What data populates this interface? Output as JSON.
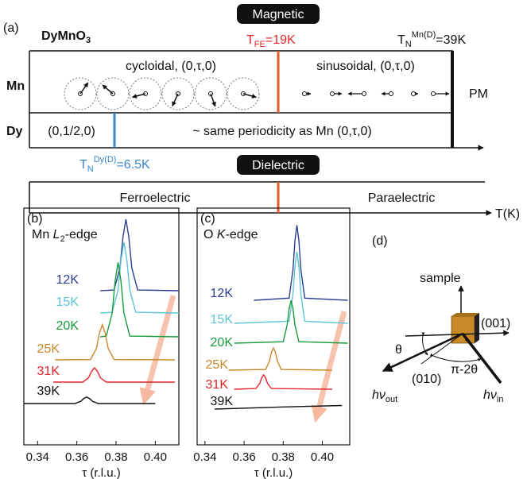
{
  "panel_a": {
    "label": "(a)",
    "compound": {
      "base": "DyMnO",
      "sub": "3"
    },
    "magnetic_header": "Magnetic",
    "t_fe": {
      "symbol": "T",
      "sub": "FE",
      "rest": "=19K"
    },
    "tn_mn": {
      "symbol": "T",
      "sub": "N",
      "sup": "Mn(D)",
      "rest": "=39K"
    },
    "rows": {
      "mn": "Mn",
      "dy": "Dy"
    },
    "cycloidal": "cycloidal, (0,τ,0)",
    "sinusoidal": "sinusoidal, (0,τ,0)",
    "pm": "PM",
    "dy_low": "(0,1/2,0)",
    "dy_high": "~ same periodicity as Mn (0,τ,0)",
    "tn_dy": {
      "symbol": "T",
      "sub": "N",
      "sup": "Dy(D)",
      "rest": "=6.5K"
    },
    "dielectric_header": "Dielectric",
    "ferro": "Ferroelectric",
    "para": "Paraelectric",
    "axis_label": "T(K)"
  },
  "chart_data": [
    {
      "type": "line",
      "panel_label": "(b)",
      "edge_label": [
        "Mn ",
        "L",
        "2",
        "-edge"
      ],
      "xlabel": "τ (r.l.u.)",
      "xlim": [
        0.333,
        0.412
      ],
      "xticks": [
        0.34,
        0.36,
        0.38,
        {
          "value": 0.4,
          "label": "0.40"
        }
      ],
      "series": [
        {
          "name": "12K",
          "color": "#2b3f8f",
          "x": [
            0.372,
            0.379,
            0.382,
            0.3835,
            0.385,
            0.3865,
            0.388,
            0.391,
            0.412
          ],
          "values": [
            0,
            0.01,
            0.32,
            0.75,
            1.0,
            0.75,
            0.32,
            0.01,
            0
          ]
        },
        {
          "name": "15K",
          "color": "#5fc4d4",
          "x": [
            0.372,
            0.378,
            0.381,
            0.3825,
            0.384,
            0.3855,
            0.387,
            0.39,
            0.412
          ],
          "values": [
            0,
            0.01,
            0.32,
            0.74,
            0.99,
            0.74,
            0.32,
            0.01,
            0
          ]
        },
        {
          "name": "20K",
          "color": "#1a9a3c",
          "x": [
            0.372,
            0.375,
            0.378,
            0.3795,
            0.381,
            0.3825,
            0.384,
            0.387,
            0.412
          ],
          "values": [
            0,
            0.01,
            0.33,
            0.78,
            1.04,
            0.78,
            0.33,
            0.01,
            0
          ]
        },
        {
          "name": "25K",
          "color": "#c8872a",
          "x": [
            0.349,
            0.367,
            0.37,
            0.3715,
            0.373,
            0.3745,
            0.376,
            0.379,
            0.41
          ],
          "values": [
            0,
            0.005,
            0.16,
            0.37,
            0.49,
            0.37,
            0.16,
            0.005,
            0
          ]
        },
        {
          "name": "31K",
          "color": "#e0242a",
          "x": [
            0.348,
            0.363,
            0.366,
            0.3675,
            0.369,
            0.3705,
            0.372,
            0.375,
            0.41
          ],
          "values": [
            0,
            0,
            0.06,
            0.15,
            0.2,
            0.15,
            0.06,
            0,
            0
          ]
        },
        {
          "name": "39K",
          "color": "#111111",
          "x": [
            0.333,
            0.359,
            0.362,
            0.3635,
            0.365,
            0.3665,
            0.368,
            0.371,
            0.4
          ],
          "values": [
            0,
            0,
            0.03,
            0.07,
            0.09,
            0.07,
            0.03,
            0,
            0
          ]
        }
      ]
    },
    {
      "type": "line",
      "panel_label": "(c)",
      "edge_label": [
        "O ",
        "K",
        "",
        "-edge"
      ],
      "xlabel": "τ (r.l.u.)",
      "xlim": [
        0.336,
        0.414
      ],
      "xticks": [
        0.34,
        0.36,
        0.38,
        {
          "value": 0.4,
          "label": "0.40"
        }
      ],
      "series": [
        {
          "name": "12K",
          "color": "#2b3f8f",
          "x": [
            0.365,
            0.383,
            0.385,
            0.386,
            0.387,
            0.388,
            0.389,
            0.391,
            0.413
          ],
          "values": [
            0,
            0.03,
            0.43,
            0.84,
            1.05,
            0.84,
            0.43,
            0.03,
            0
          ]
        },
        {
          "name": "15K",
          "color": "#5fc4d4",
          "x": [
            0.355,
            0.383,
            0.385,
            0.386,
            0.387,
            0.388,
            0.389,
            0.391,
            0.413
          ],
          "values": [
            0,
            0.03,
            0.41,
            0.8,
            1.0,
            0.8,
            0.41,
            0.03,
            0
          ]
        },
        {
          "name": "20K",
          "color": "#1a9a3c",
          "x": [
            0.355,
            0.38,
            0.382,
            0.383,
            0.384,
            0.385,
            0.386,
            0.388,
            0.413
          ],
          "values": [
            0,
            0.02,
            0.25,
            0.48,
            0.6,
            0.48,
            0.25,
            0.02,
            0
          ]
        },
        {
          "name": "25K",
          "color": "#c8872a",
          "x": [
            0.352,
            0.371,
            0.373,
            0.374,
            0.375,
            0.376,
            0.377,
            0.379,
            0.405
          ],
          "values": [
            0,
            0.01,
            0.13,
            0.25,
            0.31,
            0.25,
            0.13,
            0.01,
            0
          ]
        },
        {
          "name": "31K",
          "color": "#e0242a",
          "x": [
            0.355,
            0.366,
            0.368,
            0.369,
            0.37,
            0.371,
            0.372,
            0.374,
            0.405
          ],
          "values": [
            0,
            0.01,
            0.08,
            0.16,
            0.2,
            0.16,
            0.08,
            0.01,
            0
          ]
        },
        {
          "name": "39K",
          "color": "#111111",
          "x": [
            0.345,
            0.38,
            0.41
          ],
          "values": [
            0,
            0.03,
            0.05
          ]
        }
      ]
    }
  ],
  "panel_d": {
    "label": "(d)",
    "sample": "sample",
    "axis_001": "(001)",
    "axis_010": "(010)",
    "theta": "θ",
    "angle": "π-2θ",
    "out": {
      "base": "hν",
      "sub": "out"
    },
    "in": {
      "base": "hν",
      "sub": "in"
    }
  }
}
